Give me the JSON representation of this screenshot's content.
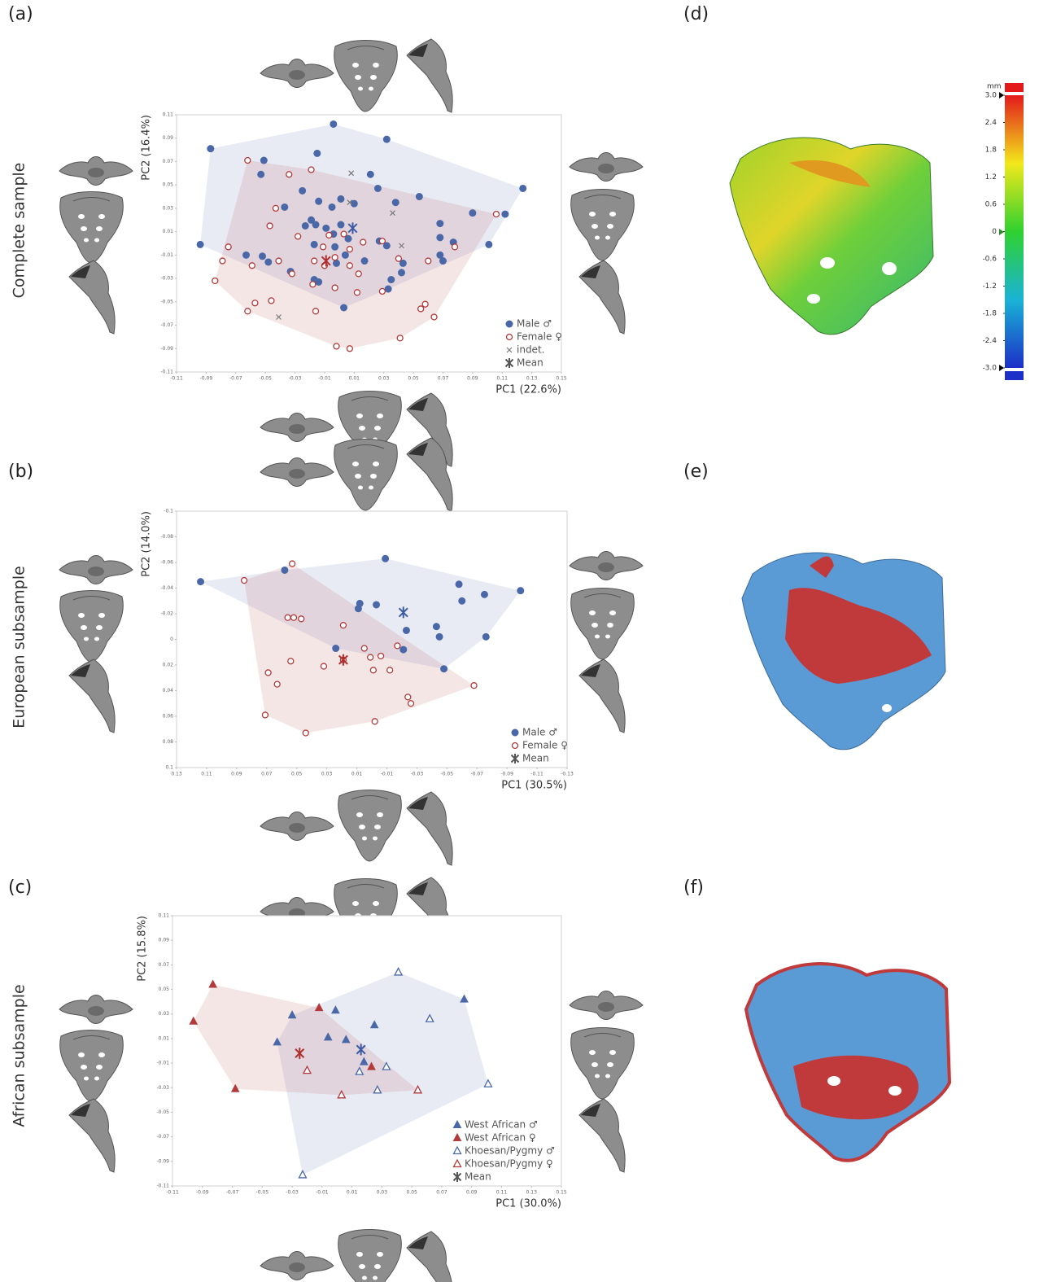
{
  "panel_labels": [
    "(a)",
    "(b)",
    "(c)",
    "(d)",
    "(e)",
    "(f)"
  ],
  "row_labels": [
    "Complete sample",
    "European subsample",
    "African subsample"
  ],
  "chart_data": [
    {
      "type": "scatter",
      "xlabel": "PC1 (22.6%)",
      "ylabel": "PC2 (16.4%)",
      "xlim": [
        -0.11,
        0.15
      ],
      "ylim": [
        -0.11,
        0.11
      ],
      "xticks": [
        -0.11,
        -0.09,
        -0.07,
        -0.05,
        -0.03,
        -0.01,
        0.01,
        0.03,
        0.05,
        0.07,
        0.09,
        0.11,
        0.13,
        0.15
      ],
      "yticks": [
        -0.11,
        -0.09,
        -0.07,
        -0.05,
        -0.03,
        -0.01,
        0.01,
        0.03,
        0.05,
        0.07,
        0.09,
        0.11
      ],
      "legend": "lower right",
      "series": [
        {
          "name": "Male ♂",
          "color": "#4a68a8",
          "marker": "circle",
          "hull": true,
          "x": [
            -0.004,
            0.032,
            -0.087,
            -0.015,
            -0.051,
            -0.053,
            0.021,
            0.026,
            -0.025,
            0.124,
            0.054,
            0.001,
            -0.014,
            0.038,
            -0.037,
            0.01,
            -0.005,
            -0.019,
            -0.023,
            -0.016,
            -0.009,
            -0.004,
            0.001,
            0.006,
            0.027,
            0.032,
            0.068,
            0.09,
            0.112,
            -0.094,
            -0.063,
            -0.052,
            -0.048,
            -0.017,
            -0.003,
            0.004,
            -0.002,
            0.017,
            0.068,
            0.077,
            0.068,
            0.07,
            0.101,
            -0.033,
            -0.017,
            -0.014,
            0.035,
            0.033,
            0.043,
            0.042,
            0.003
          ],
          "values": [
            0.102,
            0.089,
            0.081,
            0.077,
            0.071,
            0.059,
            0.059,
            0.047,
            0.045,
            0.047,
            0.04,
            0.038,
            0.036,
            0.035,
            0.031,
            0.034,
            0.031,
            0.02,
            0.015,
            0.016,
            0.013,
            0.008,
            0.016,
            0.004,
            0.002,
            -0.002,
            0.017,
            0.026,
            0.025,
            -0.001,
            -0.01,
            -0.011,
            -0.016,
            -0.001,
            -0.003,
            -0.01,
            -0.017,
            -0.015,
            0.005,
            0.001,
            -0.01,
            -0.015,
            -0.001,
            -0.024,
            -0.031,
            -0.033,
            -0.031,
            -0.039,
            -0.017,
            -0.025,
            -0.055
          ]
        },
        {
          "name": "Female ♀",
          "color": "#b23a3a",
          "marker": "circle-open",
          "hull": true,
          "x": [
            -0.062,
            -0.034,
            -0.019,
            0.106,
            -0.043,
            -0.047,
            -0.075,
            -0.079,
            -0.059,
            -0.041,
            -0.028,
            -0.017,
            -0.011,
            -0.007,
            0.003,
            0.007,
            0.016,
            0.029,
            -0.003,
            0.007,
            -0.01,
            0.013,
            -0.032,
            -0.018,
            -0.003,
            0.029,
            0.04,
            0.06,
            0.078,
            -0.084,
            -0.057,
            -0.062,
            -0.046,
            -0.016,
            0.012,
            0.058,
            0.055,
            0.064,
            0.041,
            -0.002,
            0.007
          ],
          "values": [
            0.071,
            0.059,
            0.063,
            0.025,
            0.03,
            0.015,
            -0.003,
            -0.015,
            -0.019,
            -0.015,
            0.006,
            -0.015,
            -0.003,
            0.007,
            0.008,
            -0.005,
            0.001,
            0.002,
            -0.012,
            -0.019,
            -0.019,
            -0.026,
            -0.026,
            -0.035,
            -0.038,
            -0.041,
            -0.013,
            -0.015,
            -0.003,
            -0.032,
            -0.051,
            -0.058,
            -0.049,
            -0.058,
            -0.042,
            -0.052,
            -0.056,
            -0.063,
            -0.081,
            -0.088,
            -0.09
          ]
        },
        {
          "name": "indet.",
          "color": "#777777",
          "marker": "x",
          "x": [
            0.008,
            0.007,
            0.036,
            0.042,
            -0.041
          ],
          "values": [
            0.06,
            0.035,
            0.026,
            -0.002,
            -0.063
          ]
        },
        {
          "name": "Mean",
          "color": "#555555",
          "marker": "asterisk",
          "point_colors": [
            "#3b5ba5",
            "#b03030"
          ],
          "x": [
            0.009,
            -0.009
          ],
          "values": [
            0.013,
            -0.015
          ]
        }
      ]
    },
    {
      "type": "scatter",
      "xlabel": "PC1 (30.5%)",
      "ylabel": "PC2 (14.0%)",
      "xlim": [
        0.13,
        -0.13
      ],
      "ylim": [
        0.1,
        -0.1
      ],
      "xticks": [
        0.13,
        0.11,
        0.09,
        0.07,
        0.05,
        0.03,
        0.01,
        -0.01,
        -0.03,
        -0.05,
        -0.07,
        -0.09,
        -0.11,
        -0.13
      ],
      "yticks": [
        -0.1,
        -0.08,
        -0.06,
        -0.04,
        -0.02,
        0,
        0.02,
        0.04,
        0.06,
        0.08,
        0.1
      ],
      "legend": "lower right",
      "series": [
        {
          "name": "Male ♂",
          "color": "#4a68a8",
          "marker": "circle",
          "hull": true,
          "x": [
            0.114,
            0.058,
            -0.009,
            0.008,
            0.009,
            -0.003,
            -0.023,
            -0.021,
            0.024,
            -0.043,
            -0.045,
            -0.058,
            -0.06,
            -0.075,
            -0.076,
            -0.099,
            -0.048
          ],
          "values": [
            -0.045,
            -0.054,
            -0.063,
            -0.028,
            -0.024,
            -0.027,
            -0.007,
            0.008,
            0.007,
            -0.01,
            -0.002,
            -0.043,
            -0.03,
            -0.035,
            -0.002,
            -0.038,
            0.023
          ]
        },
        {
          "name": "Female ♀",
          "color": "#b23a3a",
          "marker": "circle-open",
          "hull": true,
          "x": [
            0.085,
            0.053,
            0.056,
            0.052,
            0.047,
            0.019,
            0.069,
            0.054,
            0.063,
            0.071,
            0.044,
            0.032,
            0.019,
            0.005,
            0.001,
            -0.006,
            -0.001,
            -0.012,
            -0.017,
            -0.024,
            -0.026,
            -0.002,
            -0.068
          ],
          "values": [
            -0.046,
            -0.059,
            -0.017,
            -0.017,
            -0.016,
            -0.011,
            0.026,
            0.017,
            0.035,
            0.059,
            0.073,
            0.021,
            0.016,
            0.007,
            0.014,
            0.013,
            0.024,
            0.024,
            0.005,
            0.045,
            0.05,
            0.064,
            0.036
          ]
        },
        {
          "name": "Mean",
          "color": "#555555",
          "marker": "asterisk",
          "point_colors": [
            "#3b5ba5",
            "#b03030"
          ],
          "x": [
            -0.021,
            0.019
          ],
          "values": [
            -0.021,
            0.016
          ]
        }
      ]
    },
    {
      "type": "scatter",
      "xlabel": "PC1 (30.0%)",
      "ylabel": "PC2 (15.8%)",
      "xlim": [
        -0.11,
        0.15
      ],
      "ylim": [
        -0.11,
        0.11
      ],
      "xticks": [
        -0.11,
        -0.09,
        -0.07,
        -0.05,
        -0.03,
        -0.01,
        0.01,
        0.03,
        0.05,
        0.07,
        0.09,
        0.11,
        0.13,
        0.15
      ],
      "yticks": [
        -0.11,
        -0.09,
        -0.07,
        -0.05,
        -0.03,
        -0.01,
        0.01,
        0.03,
        0.05,
        0.07,
        0.09,
        0.11
      ],
      "legend": "lower right",
      "series": [
        {
          "name": "West African ♂",
          "color": "#4a68a8",
          "marker": "triangle",
          "hull": true,
          "x": [
            -0.03,
            -0.001,
            -0.04,
            -0.006,
            0.006,
            0.025,
            0.085,
            0.018
          ],
          "values": [
            0.029,
            0.033,
            0.007,
            0.011,
            0.009,
            0.021,
            0.042,
            -0.009
          ]
        },
        {
          "name": "West African ♀",
          "color": "#b23a3a",
          "marker": "triangle",
          "hull": true,
          "x": [
            -0.083,
            -0.096,
            -0.012,
            -0.068,
            0.023
          ],
          "values": [
            0.054,
            0.024,
            0.035,
            -0.031,
            -0.013
          ]
        },
        {
          "name": "Khoesan/Pygmy ♂",
          "color": "#4a68a8",
          "marker": "triangle-open",
          "hull": true,
          "x": [
            0.041,
            0.062,
            0.101,
            0.033,
            0.015,
            0.027,
            -0.023
          ],
          "values": [
            0.064,
            0.026,
            -0.027,
            -0.013,
            -0.017,
            -0.032,
            -0.101
          ]
        },
        {
          "name": "Khoesan/Pygmy  ♀",
          "color": "#b23a3a",
          "marker": "triangle-open",
          "hull": true,
          "x": [
            -0.02,
            0.003,
            0.054
          ],
          "values": [
            -0.016,
            -0.036,
            -0.032
          ]
        },
        {
          "name": "Mean",
          "color": "#555555",
          "marker": "asterisk",
          "point_colors": [
            "#b03030",
            "#3b5ba5"
          ],
          "x": [
            -0.025,
            0.016
          ],
          "values": [
            -0.002,
            0.001
          ]
        }
      ]
    },
    {
      "type": "colorbar",
      "title": "mm",
      "ylim": [
        -3,
        3
      ],
      "yticks": [
        {
          "value": 3,
          "label": "3.0"
        },
        2.4,
        1.8,
        1.2,
        0.6,
        0,
        -0.6,
        -1.2,
        -1.8,
        -2.4,
        {
          "value": -3,
          "label": "-3.0"
        }
      ]
    }
  ]
}
